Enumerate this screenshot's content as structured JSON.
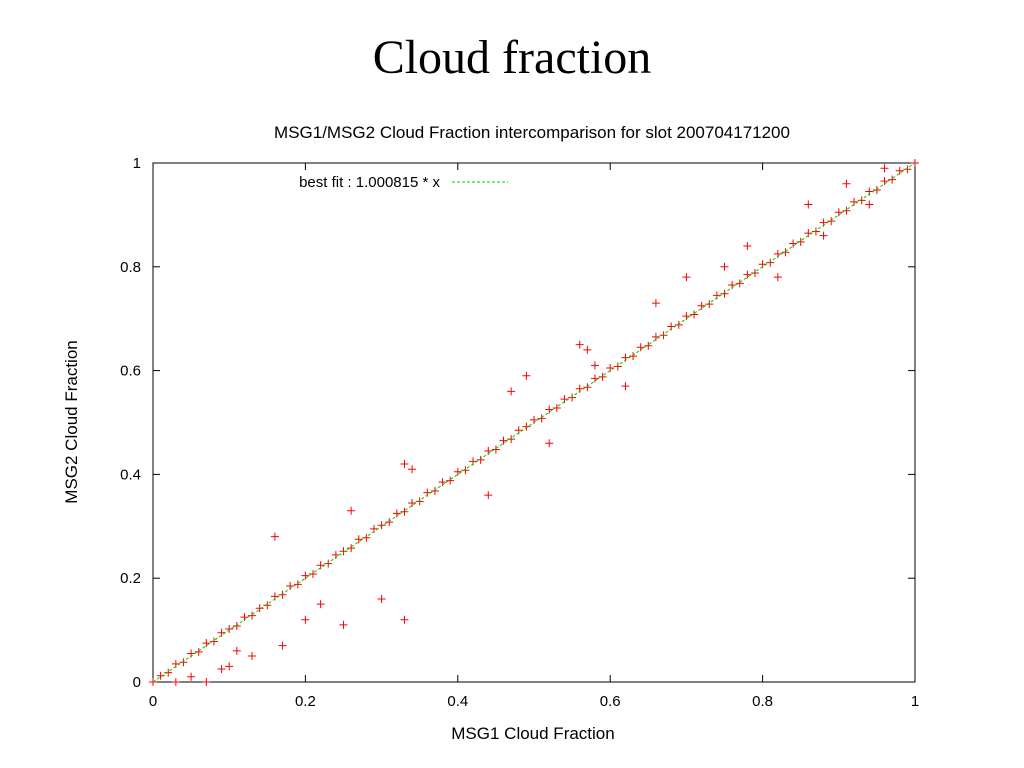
{
  "slide": {
    "title": "Cloud fraction"
  },
  "chart_data": {
    "type": "scatter",
    "title": "MSG1/MSG2 Cloud Fraction intercomparison for slot 200704171200",
    "xlabel": "MSG1 Cloud Fraction",
    "ylabel": "MSG2 Cloud Fraction",
    "xlim": [
      0,
      1
    ],
    "ylim": [
      0,
      1
    ],
    "x_ticks": [
      "0",
      "0.2",
      "0.4",
      "0.6",
      "0.8",
      "1"
    ],
    "y_ticks": [
      "0",
      "0.2",
      "0.4",
      "0.6",
      "0.8",
      "1"
    ],
    "grid": false,
    "legend_position": "top-left",
    "fit": {
      "label": "best fit : 1.000815 * x",
      "slope": 1.000815,
      "color": "#00cc00"
    },
    "marker": {
      "symbol": "+",
      "color": "#ff0000"
    },
    "series_point_count_note": "dense cloud of points along y = x",
    "points": [
      [
        0.0,
        0.0
      ],
      [
        0.01,
        0.012
      ],
      [
        0.02,
        0.018
      ],
      [
        0.03,
        0.035
      ],
      [
        0.04,
        0.038
      ],
      [
        0.05,
        0.055
      ],
      [
        0.06,
        0.058
      ],
      [
        0.07,
        0.075
      ],
      [
        0.08,
        0.078
      ],
      [
        0.09,
        0.095
      ],
      [
        0.1,
        0.102
      ],
      [
        0.11,
        0.108
      ],
      [
        0.12,
        0.125
      ],
      [
        0.13,
        0.128
      ],
      [
        0.14,
        0.142
      ],
      [
        0.15,
        0.148
      ],
      [
        0.16,
        0.165
      ],
      [
        0.17,
        0.168
      ],
      [
        0.18,
        0.185
      ],
      [
        0.19,
        0.188
      ],
      [
        0.2,
        0.205
      ],
      [
        0.21,
        0.208
      ],
      [
        0.22,
        0.225
      ],
      [
        0.23,
        0.228
      ],
      [
        0.24,
        0.245
      ],
      [
        0.25,
        0.252
      ],
      [
        0.26,
        0.258
      ],
      [
        0.27,
        0.275
      ],
      [
        0.28,
        0.278
      ],
      [
        0.29,
        0.295
      ],
      [
        0.3,
        0.302
      ],
      [
        0.31,
        0.308
      ],
      [
        0.32,
        0.325
      ],
      [
        0.33,
        0.328
      ],
      [
        0.34,
        0.345
      ],
      [
        0.35,
        0.348
      ],
      [
        0.36,
        0.365
      ],
      [
        0.37,
        0.368
      ],
      [
        0.38,
        0.385
      ],
      [
        0.39,
        0.388
      ],
      [
        0.4,
        0.405
      ],
      [
        0.41,
        0.408
      ],
      [
        0.42,
        0.425
      ],
      [
        0.43,
        0.428
      ],
      [
        0.44,
        0.445
      ],
      [
        0.45,
        0.448
      ],
      [
        0.46,
        0.465
      ],
      [
        0.47,
        0.468
      ],
      [
        0.48,
        0.485
      ],
      [
        0.49,
        0.492
      ],
      [
        0.5,
        0.505
      ],
      [
        0.51,
        0.508
      ],
      [
        0.52,
        0.525
      ],
      [
        0.53,
        0.528
      ],
      [
        0.54,
        0.545
      ],
      [
        0.55,
        0.548
      ],
      [
        0.56,
        0.565
      ],
      [
        0.57,
        0.568
      ],
      [
        0.58,
        0.585
      ],
      [
        0.59,
        0.588
      ],
      [
        0.6,
        0.605
      ],
      [
        0.61,
        0.608
      ],
      [
        0.62,
        0.625
      ],
      [
        0.63,
        0.628
      ],
      [
        0.64,
        0.645
      ],
      [
        0.65,
        0.648
      ],
      [
        0.66,
        0.665
      ],
      [
        0.67,
        0.668
      ],
      [
        0.68,
        0.685
      ],
      [
        0.69,
        0.688
      ],
      [
        0.7,
        0.705
      ],
      [
        0.71,
        0.708
      ],
      [
        0.72,
        0.725
      ],
      [
        0.73,
        0.728
      ],
      [
        0.74,
        0.745
      ],
      [
        0.75,
        0.748
      ],
      [
        0.76,
        0.765
      ],
      [
        0.77,
        0.768
      ],
      [
        0.78,
        0.785
      ],
      [
        0.79,
        0.788
      ],
      [
        0.8,
        0.805
      ],
      [
        0.81,
        0.808
      ],
      [
        0.82,
        0.825
      ],
      [
        0.83,
        0.828
      ],
      [
        0.84,
        0.845
      ],
      [
        0.85,
        0.848
      ],
      [
        0.86,
        0.865
      ],
      [
        0.87,
        0.868
      ],
      [
        0.88,
        0.885
      ],
      [
        0.89,
        0.888
      ],
      [
        0.9,
        0.905
      ],
      [
        0.91,
        0.908
      ],
      [
        0.92,
        0.925
      ],
      [
        0.93,
        0.928
      ],
      [
        0.94,
        0.945
      ],
      [
        0.95,
        0.948
      ],
      [
        0.96,
        0.965
      ],
      [
        0.97,
        0.968
      ],
      [
        0.98,
        0.985
      ],
      [
        0.99,
        0.988
      ],
      [
        1.0,
        1.0
      ],
      [
        0.03,
        0.0
      ],
      [
        0.05,
        0.01
      ],
      [
        0.07,
        0.0
      ],
      [
        0.09,
        0.025
      ],
      [
        0.1,
        0.03
      ],
      [
        0.11,
        0.06
      ],
      [
        0.13,
        0.05
      ],
      [
        0.17,
        0.07
      ],
      [
        0.16,
        0.28
      ],
      [
        0.2,
        0.12
      ],
      [
        0.22,
        0.15
      ],
      [
        0.25,
        0.11
      ],
      [
        0.3,
        0.16
      ],
      [
        0.33,
        0.12
      ],
      [
        0.26,
        0.33
      ],
      [
        0.33,
        0.42
      ],
      [
        0.34,
        0.41
      ],
      [
        0.44,
        0.36
      ],
      [
        0.47,
        0.56
      ],
      [
        0.49,
        0.59
      ],
      [
        0.52,
        0.46
      ],
      [
        0.58,
        0.61
      ],
      [
        0.56,
        0.65
      ],
      [
        0.57,
        0.64
      ],
      [
        0.62,
        0.57
      ],
      [
        0.66,
        0.73
      ],
      [
        0.7,
        0.78
      ],
      [
        0.75,
        0.8
      ],
      [
        0.78,
        0.84
      ],
      [
        0.82,
        0.78
      ],
      [
        0.86,
        0.92
      ],
      [
        0.88,
        0.86
      ],
      [
        0.91,
        0.96
      ],
      [
        0.94,
        0.92
      ],
      [
        0.96,
        0.99
      ]
    ]
  }
}
